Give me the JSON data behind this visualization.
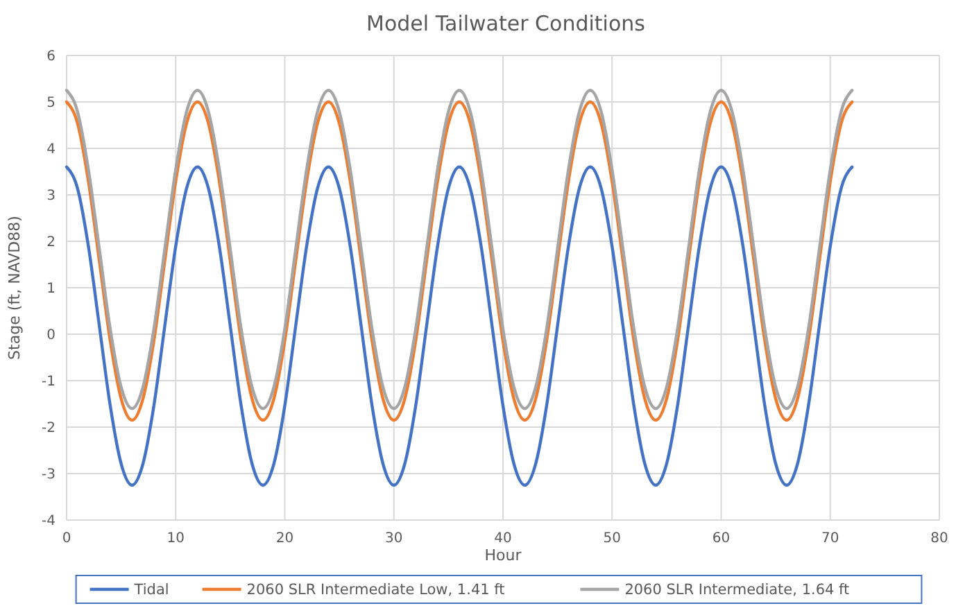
{
  "chart_data": {
    "type": "line",
    "title": "Model Tailwater Conditions",
    "xlabel": "Hour",
    "ylabel": "Stage (ft, NAVD88)",
    "x": [
      0,
      1,
      2,
      3,
      4,
      5,
      6,
      7,
      8,
      9,
      10,
      11,
      12,
      13,
      14,
      15,
      16,
      17,
      18,
      19,
      20,
      21,
      22,
      23,
      24,
      25,
      26,
      27,
      28,
      29,
      30,
      31,
      32,
      33,
      34,
      35,
      36,
      37,
      38,
      39,
      40,
      41,
      42,
      43,
      44,
      45,
      46,
      47,
      48,
      49,
      50,
      51,
      52,
      53,
      54,
      55,
      56,
      57,
      58,
      59,
      60,
      61,
      62,
      63,
      64,
      65,
      66,
      67,
      68,
      69,
      70,
      71,
      72
    ],
    "series": [
      {
        "name": "Tidal",
        "color": "#4472c4",
        "values": [
          3.6,
          3.14,
          1.89,
          0.18,
          -1.54,
          -2.79,
          -3.25,
          -2.79,
          -1.54,
          0.18,
          1.89,
          3.14,
          3.6,
          3.14,
          1.89,
          0.18,
          -1.54,
          -2.79,
          -3.25,
          -2.79,
          -1.54,
          0.18,
          1.89,
          3.14,
          3.6,
          3.14,
          1.89,
          0.18,
          -1.54,
          -2.79,
          -3.25,
          -2.79,
          -1.54,
          0.18,
          1.89,
          3.14,
          3.6,
          3.14,
          1.89,
          0.18,
          -1.54,
          -2.79,
          -3.25,
          -2.79,
          -1.54,
          0.18,
          1.89,
          3.14,
          3.6,
          3.14,
          1.89,
          0.18,
          -1.54,
          -2.79,
          -3.25,
          -2.79,
          -1.54,
          0.18,
          1.89,
          3.14,
          3.6,
          3.14,
          1.89,
          0.18,
          -1.54,
          -2.79,
          -3.25,
          -2.79,
          -1.54,
          0.18,
          1.89,
          3.14,
          3.6
        ]
      },
      {
        "name": "2060 SLR Intermediate Low, 1.41 ft",
        "color": "#ed7d31",
        "values": [
          5.0,
          4.54,
          3.29,
          1.58,
          -0.14,
          -1.39,
          -1.85,
          -1.39,
          -0.14,
          1.58,
          3.29,
          4.54,
          5.0,
          4.54,
          3.29,
          1.58,
          -0.14,
          -1.39,
          -1.85,
          -1.39,
          -0.14,
          1.58,
          3.29,
          4.54,
          5.0,
          4.54,
          3.29,
          1.58,
          -0.14,
          -1.39,
          -1.85,
          -1.39,
          -0.14,
          1.58,
          3.29,
          4.54,
          5.0,
          4.54,
          3.29,
          1.58,
          -0.14,
          -1.39,
          -1.85,
          -1.39,
          -0.14,
          1.58,
          3.29,
          4.54,
          5.0,
          4.54,
          3.29,
          1.58,
          -0.14,
          -1.39,
          -1.85,
          -1.39,
          -0.14,
          1.58,
          3.29,
          4.54,
          5.0,
          4.54,
          3.29,
          1.58,
          -0.14,
          -1.39,
          -1.85,
          -1.39,
          -0.14,
          1.58,
          3.29,
          4.54,
          5.0
        ]
      },
      {
        "name": "2060 SLR Intermediate, 1.64 ft",
        "color": "#a5a5a5",
        "values": [
          5.25,
          4.79,
          3.54,
          1.83,
          0.11,
          -1.14,
          -1.6,
          -1.14,
          0.11,
          1.83,
          3.54,
          4.79,
          5.25,
          4.79,
          3.54,
          1.83,
          0.11,
          -1.14,
          -1.6,
          -1.14,
          0.11,
          1.83,
          3.54,
          4.79,
          5.25,
          4.79,
          3.54,
          1.83,
          0.11,
          -1.14,
          -1.6,
          -1.14,
          0.11,
          1.83,
          3.54,
          4.79,
          5.25,
          4.79,
          3.54,
          1.83,
          0.11,
          -1.14,
          -1.6,
          -1.14,
          0.11,
          1.83,
          3.54,
          4.79,
          5.25,
          4.79,
          3.54,
          1.83,
          0.11,
          -1.14,
          -1.6,
          -1.14,
          0.11,
          1.83,
          3.54,
          4.79,
          5.25,
          4.79,
          3.54,
          1.83,
          0.11,
          -1.14,
          -1.6,
          -1.14,
          0.11,
          1.83,
          3.54,
          4.79,
          5.25
        ]
      }
    ],
    "xlim": [
      0,
      80
    ],
    "xticks": [
      0,
      10,
      20,
      30,
      40,
      50,
      60,
      70,
      80
    ],
    "ylim": [
      -4,
      6
    ],
    "yticks": [
      -4,
      -3,
      -2,
      -1,
      0,
      1,
      2,
      3,
      4,
      5,
      6
    ],
    "grid": true,
    "legend": "bottom",
    "marker": "none",
    "line_style": "solid"
  }
}
